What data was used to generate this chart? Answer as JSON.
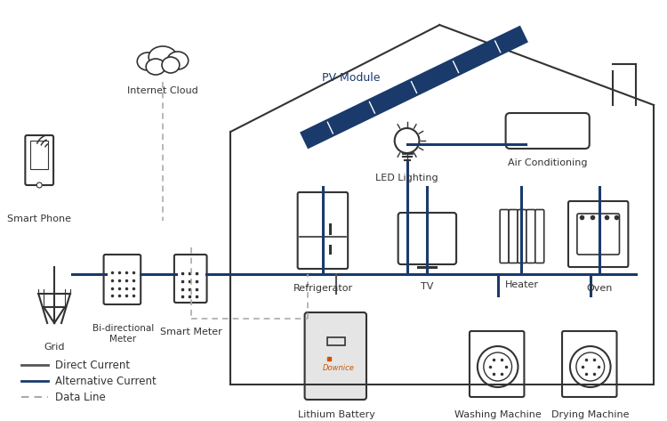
{
  "bg_color": "#ffffff",
  "house_color": "#333333",
  "ac_line_color": "#1a3a6b",
  "dc_line_color": "#555555",
  "data_line_color": "#aaaaaa",
  "pv_color": "#1a3a6b",
  "legend_items": [
    {
      "label": "Direct Current",
      "color": "#555555",
      "style": "solid"
    },
    {
      "label": "Alternative Current",
      "color": "#1a3a6b",
      "style": "solid"
    },
    {
      "label": "Data Line",
      "color": "#aaaaaa",
      "style": "dashed"
    }
  ],
  "labels": {
    "smart_phone": "Smart Phone",
    "internet_cloud": "Internet Cloud",
    "pv_module": "PV Module",
    "led_lighting": "LED Lighting",
    "air_conditioning": "Air Conditioning",
    "grid": "Grid",
    "bi_meter": "Bi-directional\nMeter",
    "smart_meter": "Smart Meter",
    "refrigerator": "Refrigerator",
    "tv": "TV",
    "heater": "Heater",
    "oven": "Oven",
    "lithium_battery": "Lithium Battery",
    "washing_machine": "Washing Machine",
    "drying_machine": "Drying Machine"
  }
}
